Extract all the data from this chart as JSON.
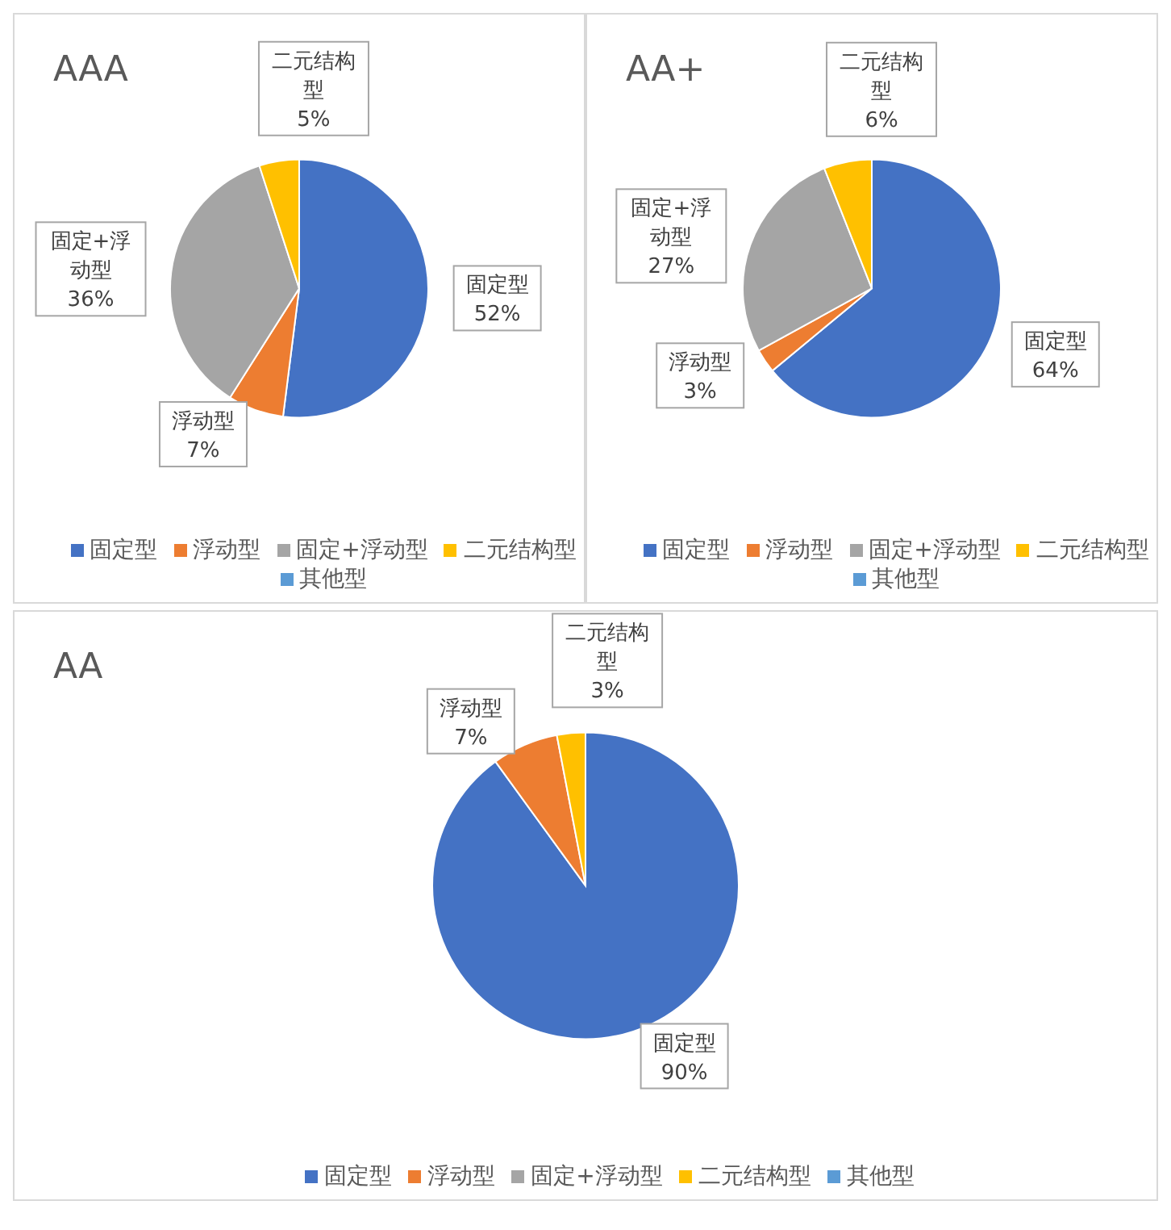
{
  "chart_data": [
    {
      "type": "pie",
      "title": "AAA",
      "categories": [
        "固定型",
        "浮动型",
        "固定+浮动型",
        "二元结构型",
        "其他型"
      ],
      "values": [
        52,
        7,
        36,
        5,
        0
      ],
      "colors": [
        "#4472c4",
        "#ed7d31",
        "#a5a5a5",
        "#ffc000",
        "#5b9bd5"
      ],
      "value_labels": [
        "52%",
        "7%",
        "36%",
        "5%",
        null
      ],
      "legend": "bottom"
    },
    {
      "type": "pie",
      "title": "AA+",
      "categories": [
        "固定型",
        "浮动型",
        "固定+浮动型",
        "二元结构型",
        "其他型"
      ],
      "values": [
        64,
        3,
        27,
        6,
        0
      ],
      "colors": [
        "#4472c4",
        "#ed7d31",
        "#a5a5a5",
        "#ffc000",
        "#5b9bd5"
      ],
      "value_labels": [
        "64%",
        "3%",
        "27%",
        "6%",
        null
      ],
      "legend": "bottom"
    },
    {
      "type": "pie",
      "title": "AA",
      "categories": [
        "固定型",
        "浮动型",
        "固定+浮动型",
        "二元结构型",
        "其他型"
      ],
      "values": [
        90,
        7,
        0,
        3,
        0
      ],
      "colors": [
        "#4472c4",
        "#ed7d31",
        "#a5a5a5",
        "#ffc000",
        "#5b9bd5"
      ],
      "value_labels": [
        "90%",
        "7%",
        null,
        "3%",
        null
      ],
      "legend": "bottom"
    }
  ]
}
